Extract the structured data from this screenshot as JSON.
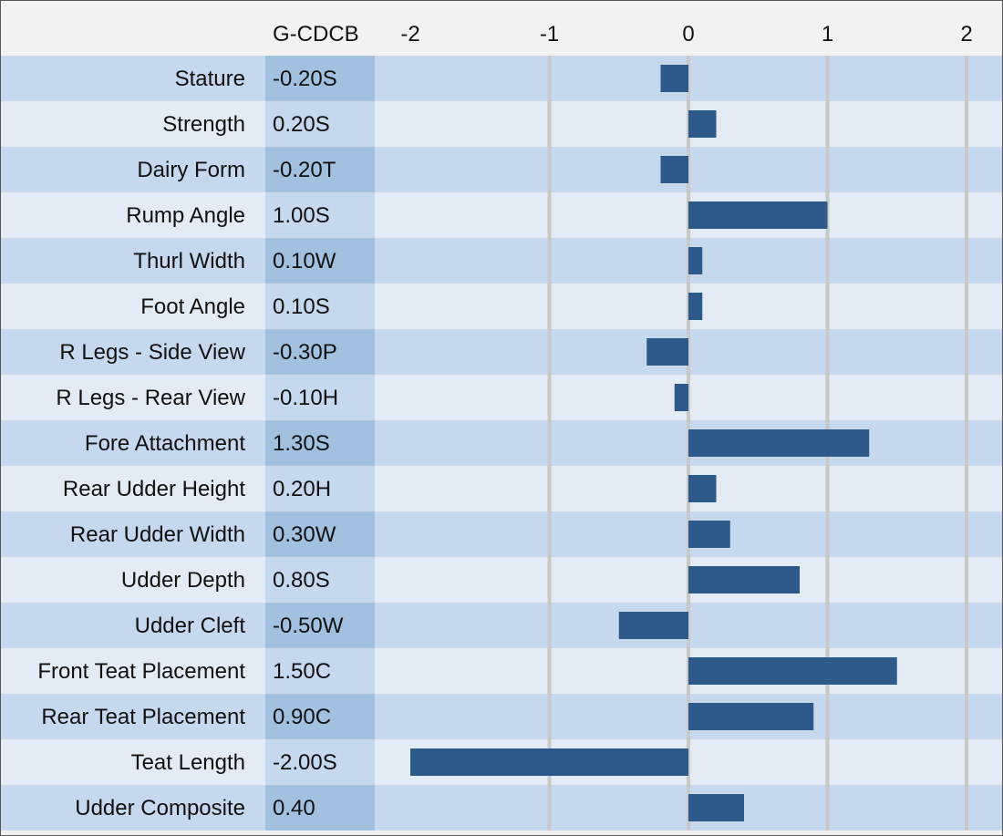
{
  "chart_data": {
    "type": "bar",
    "orientation": "horizontal",
    "column_header": "G-CDCB",
    "xlim": [
      -2,
      2
    ],
    "x_ticks": [
      -2,
      -1,
      0,
      1,
      2
    ],
    "x_tick_labels": [
      "-2",
      "-1",
      "0",
      "1",
      "2"
    ],
    "grid": true,
    "categories": [
      "Stature",
      "Strength",
      "Dairy Form",
      "Rump Angle",
      "Thurl Width",
      "Foot Angle",
      "R Legs - Side View",
      "R Legs - Rear View",
      "Fore Attachment",
      "Rear Udder Height",
      "Rear Udder Width",
      "Udder Depth",
      "Udder Cleft",
      "Front Teat Placement",
      "Rear Teat Placement",
      "Teat Length",
      "Udder Composite"
    ],
    "values": [
      -0.2,
      0.2,
      -0.2,
      1.0,
      0.1,
      0.1,
      -0.3,
      -0.1,
      1.3,
      0.2,
      0.3,
      0.8,
      -0.5,
      1.5,
      0.9,
      -2.0,
      0.4
    ],
    "value_labels": [
      "-0.20S",
      "0.20S",
      "-0.20T",
      "1.00S",
      "0.10W",
      "0.10S",
      "-0.30P",
      "-0.10H",
      "1.30S",
      "0.20H",
      "0.30W",
      "0.80S",
      "-0.50W",
      "1.50C",
      "0.90C",
      "-2.00S",
      "0.40"
    ]
  },
  "colors": {
    "header_bg": "#f2f2f2",
    "row_dark": "#c5d8ed",
    "row_light": "#e3ebf5",
    "value_col_dark": "#a2c0e0",
    "value_col_light": "#c5d8ed",
    "bar": "#2e5a8b",
    "grid": "#c8c8c8",
    "text": "#111111"
  }
}
